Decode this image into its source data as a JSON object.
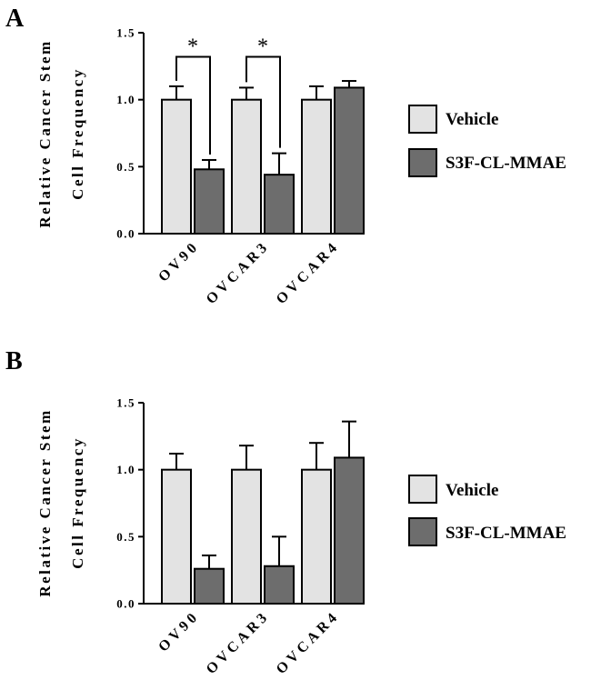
{
  "figure": {
    "colors": {
      "vehicle": "#e3e3e3",
      "treatment": "#6d6d6d",
      "stroke": "#000000"
    }
  },
  "chart_data": [
    {
      "panel": "A",
      "type": "bar",
      "ylabel_line1": "Relative Cancer Stem",
      "ylabel_line2": "Cell Frequency",
      "xlabel": "",
      "ylim": [
        0,
        1.5
      ],
      "yticks": [
        "0.0",
        "0.5",
        "1.0",
        "1.5"
      ],
      "categories": [
        "OV90",
        "OVCAR3",
        "OVCAR4"
      ],
      "series": [
        {
          "name": "Vehicle",
          "values": [
            1.0,
            1.0,
            1.0
          ],
          "errors": [
            0.1,
            0.09,
            0.1
          ]
        },
        {
          "name": "S3F-CL-MMAE",
          "values": [
            0.48,
            0.44,
            1.09
          ],
          "errors": [
            0.07,
            0.16,
            0.05
          ]
        }
      ],
      "significance": [
        {
          "category": "OV90",
          "label": "*"
        },
        {
          "category": "OVCAR3",
          "label": "*"
        }
      ],
      "legend": "right"
    },
    {
      "panel": "B",
      "type": "bar",
      "ylabel_line1": "Relative Cancer Stem",
      "ylabel_line2": "Cell Frequency",
      "xlabel": "",
      "ylim": [
        0,
        1.5
      ],
      "yticks": [
        "0.0",
        "0.5",
        "1.0",
        "1.5"
      ],
      "categories": [
        "OV90",
        "OVCAR3",
        "OVCAR4"
      ],
      "series": [
        {
          "name": "Vehicle",
          "values": [
            1.0,
            1.0,
            1.0
          ],
          "errors": [
            0.12,
            0.18,
            0.2
          ]
        },
        {
          "name": "S3F-CL-MMAE",
          "values": [
            0.26,
            0.28,
            1.09
          ],
          "errors": [
            0.1,
            0.22,
            0.27
          ]
        }
      ],
      "significance": [],
      "legend": "right"
    }
  ]
}
